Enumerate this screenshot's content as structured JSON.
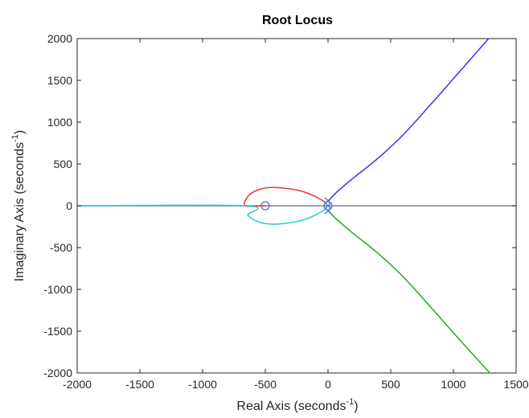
{
  "chart_data": {
    "type": "line",
    "title": "Root Locus",
    "xlabel": {
      "main": "Real Axis  (seconds",
      "sup": "-1",
      "close": ")"
    },
    "ylabel": {
      "main": "Imaginary Axis  (seconds",
      "sup": "-1",
      "close": ")"
    },
    "xlim": [
      -2000,
      1500
    ],
    "ylim": [
      -2000,
      2000
    ],
    "xticks": [
      -2000,
      -1500,
      -1000,
      -500,
      0,
      500,
      1000,
      1500
    ],
    "xtick_labels": [
      "-2000",
      "-1500",
      "-1000",
      "-500",
      "0",
      "500",
      "1000",
      "1500"
    ],
    "yticks": [
      2000,
      1500,
      1000,
      500,
      0,
      -500,
      -1000,
      -1500,
      -2000
    ],
    "ytick_labels": [
      "2000",
      "1500",
      "1000",
      "500",
      "0",
      "-500",
      "-1000",
      "-1500",
      "-2000"
    ],
    "grid": false,
    "reference_axes": {
      "real_axis_line": true,
      "color": "#808080"
    },
    "series": [
      {
        "color": "#3333ff",
        "points": [
          [
            0,
            50
          ],
          [
            60,
            150
          ],
          [
            200,
            330
          ],
          [
            400,
            570
          ],
          [
            600,
            850
          ],
          [
            800,
            1180
          ],
          [
            1000,
            1520
          ],
          [
            1280,
            2000
          ]
        ]
      },
      {
        "color": "#22aa22",
        "points": [
          [
            0,
            -50
          ],
          [
            60,
            -150
          ],
          [
            200,
            -330
          ],
          [
            400,
            -570
          ],
          [
            600,
            -850
          ],
          [
            800,
            -1180
          ],
          [
            1000,
            -1520
          ],
          [
            1290,
            -2000
          ]
        ]
      },
      {
        "color": "#ee3333",
        "points": [
          [
            -20,
            40
          ],
          [
            -100,
            110
          ],
          [
            -200,
            170
          ],
          [
            -320,
            205
          ],
          [
            -450,
            220
          ],
          [
            -560,
            190
          ],
          [
            -640,
            110
          ],
          [
            -660,
            0
          ],
          [
            -520,
            0
          ],
          [
            -500,
            0
          ]
        ]
      },
      {
        "color": "#22cccc",
        "points": [
          [
            -20,
            -40
          ],
          [
            -100,
            -110
          ],
          [
            -200,
            -170
          ],
          [
            -320,
            -205
          ],
          [
            -450,
            -220
          ],
          [
            -560,
            -190
          ],
          [
            -640,
            -110
          ],
          [
            -660,
            0
          ],
          [
            -2000,
            0
          ]
        ]
      }
    ],
    "markers": {
      "poles": {
        "symbol": "x",
        "color": "#4477cc",
        "points": [
          [
            0,
            60
          ],
          [
            0,
            -60
          ],
          [
            0,
            0
          ]
        ]
      },
      "zeros": {
        "symbol": "o",
        "color": "#4477cc",
        "points": [
          [
            -500,
            0
          ],
          [
            0,
            0
          ]
        ]
      }
    }
  }
}
